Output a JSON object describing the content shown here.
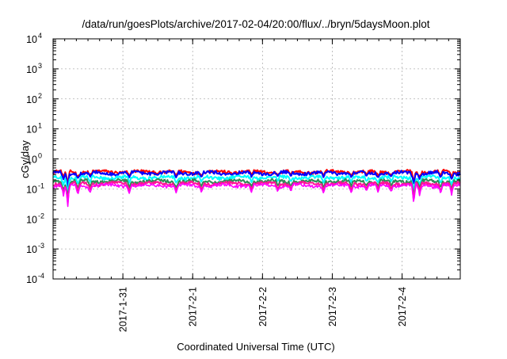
{
  "chart_data": {
    "type": "line",
    "title": "/data/run/goesPlots/archive/2017-02-04/20:00/flux/../bryn/5daysMoon.plot",
    "xlabel": "Coordinated Universal Time (UTC)",
    "ylabel": "cGy/day",
    "y_scale": "log",
    "ylim": [
      0.0001,
      10000
    ],
    "y_ticks": [
      {
        "value": 0.0001,
        "base": "10",
        "exp": "-4"
      },
      {
        "value": 0.001,
        "base": "10",
        "exp": "-3"
      },
      {
        "value": 0.01,
        "base": "10",
        "exp": "-2"
      },
      {
        "value": 0.1,
        "base": "10",
        "exp": "-1"
      },
      {
        "value": 1,
        "base": "10",
        "exp": "0"
      },
      {
        "value": 10,
        "base": "10",
        "exp": "1"
      },
      {
        "value": 100,
        "base": "10",
        "exp": "2"
      },
      {
        "value": 1000,
        "base": "10",
        "exp": "3"
      },
      {
        "value": 10000,
        "base": "10",
        "exp": "4"
      }
    ],
    "xlim": [
      "2017-01-30T00:00",
      "2017-02-04T20:00"
    ],
    "x_ticks": [
      {
        "value": "2017-01-31T00:00",
        "label": "2017-1-31"
      },
      {
        "value": "2017-02-01T00:00",
        "label": "2017-2-1"
      },
      {
        "value": "2017-02-02T00:00",
        "label": "2017-2-2"
      },
      {
        "value": "2017-02-03T00:00",
        "label": "2017-2-3"
      },
      {
        "value": "2017-02-04T00:00",
        "label": "2017-2-4"
      }
    ],
    "grid": true,
    "series": [
      {
        "color": "#ff0000",
        "base": 0.37
      },
      {
        "color": "#0000ff",
        "base": 0.34
      },
      {
        "color": "#00ffff",
        "base": 0.24
      },
      {
        "color": "#2e8b57",
        "base": 0.18
      },
      {
        "color": "#ff1493",
        "base": 0.15
      },
      {
        "color": "#ff00ff",
        "base": 0.13
      }
    ],
    "dips": [
      {
        "x": "2017-01-30T03:36",
        "value": 0.055
      },
      {
        "x": "2017-01-30T05:00",
        "value": 0.017
      },
      {
        "x": "2017-01-30T08:30",
        "value": 0.06
      },
      {
        "x": "2017-01-30T12:45",
        "value": 0.075
      },
      {
        "x": "2017-01-31T02:15",
        "value": 0.07
      },
      {
        "x": "2017-01-31T18:15",
        "value": 0.07
      },
      {
        "x": "2017-02-01T03:00",
        "value": 0.075
      },
      {
        "x": "2017-02-01T20:15",
        "value": 0.075
      },
      {
        "x": "2017-02-02T05:15",
        "value": 0.08
      },
      {
        "x": "2017-02-02T09:45",
        "value": 0.08
      },
      {
        "x": "2017-02-02T21:00",
        "value": 0.07
      },
      {
        "x": "2017-02-03T06:30",
        "value": 0.075
      },
      {
        "x": "2017-02-03T11:45",
        "value": 0.085
      },
      {
        "x": "2017-02-03T15:45",
        "value": 0.075
      },
      {
        "x": "2017-02-03T20:15",
        "value": 0.08
      },
      {
        "x": "2017-02-04T04:00",
        "value": 0.025
      },
      {
        "x": "2017-02-04T06:00",
        "value": 0.06
      },
      {
        "x": "2017-02-04T13:15",
        "value": 0.07
      },
      {
        "x": "2017-02-04T17:00",
        "value": 0.06
      }
    ]
  }
}
